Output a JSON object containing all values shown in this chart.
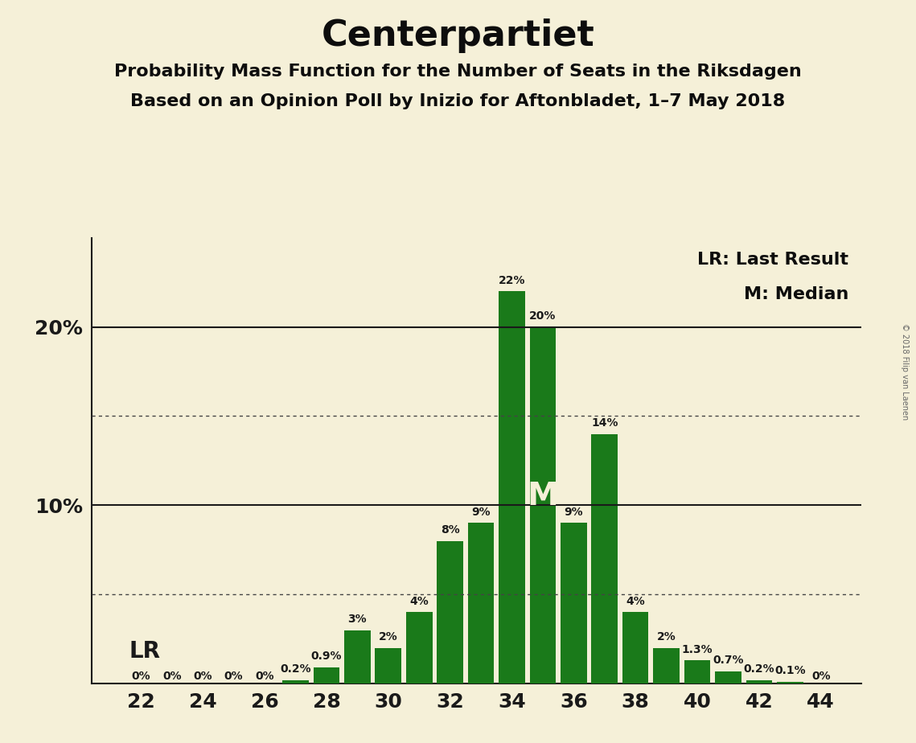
{
  "title": "Centerpartiet",
  "subtitle1": "Probability Mass Function for the Number of Seats in the Riksdagen",
  "subtitle2": "Based on an Opinion Poll by Inizio for Aftonbladet, 1–7 May 2018",
  "watermark": "© 2018 Filip van Laenen",
  "seats": [
    22,
    23,
    24,
    25,
    26,
    27,
    28,
    29,
    30,
    31,
    32,
    33,
    34,
    35,
    36,
    37,
    38,
    39,
    40,
    41,
    42,
    43,
    44
  ],
  "probabilities": [
    0.0,
    0.0,
    0.0,
    0.0,
    0.0,
    0.2,
    0.9,
    3.0,
    2.0,
    4.0,
    8.0,
    9.0,
    22.0,
    20.0,
    9.0,
    14.0,
    4.0,
    2.0,
    1.3,
    0.7,
    0.2,
    0.1,
    0.0
  ],
  "labels": [
    "0%",
    "0%",
    "0%",
    "0%",
    "0%",
    "0.2%",
    "0.9%",
    "3%",
    "2%",
    "4%",
    "8%",
    "9%",
    "22%",
    "20%",
    "9%",
    "14%",
    "4%",
    "2%",
    "1.3%",
    "0.7%",
    "0.2%",
    "0.1%",
    "0%"
  ],
  "bar_color": "#1a7a1a",
  "background_color": "#f5f0d8",
  "median_seat": 35,
  "dotted_lines": [
    5.0,
    15.0
  ],
  "solid_lines": [
    10.0,
    20.0
  ],
  "lr_label": "LR",
  "median_label": "M",
  "legend_lr": "LR: Last Result",
  "legend_m": "M: Median",
  "ylim": [
    0,
    25
  ],
  "title_fontsize": 32,
  "subtitle_fontsize": 16,
  "label_fontsize": 10,
  "tick_fontsize": 18,
  "legend_fontsize": 16
}
